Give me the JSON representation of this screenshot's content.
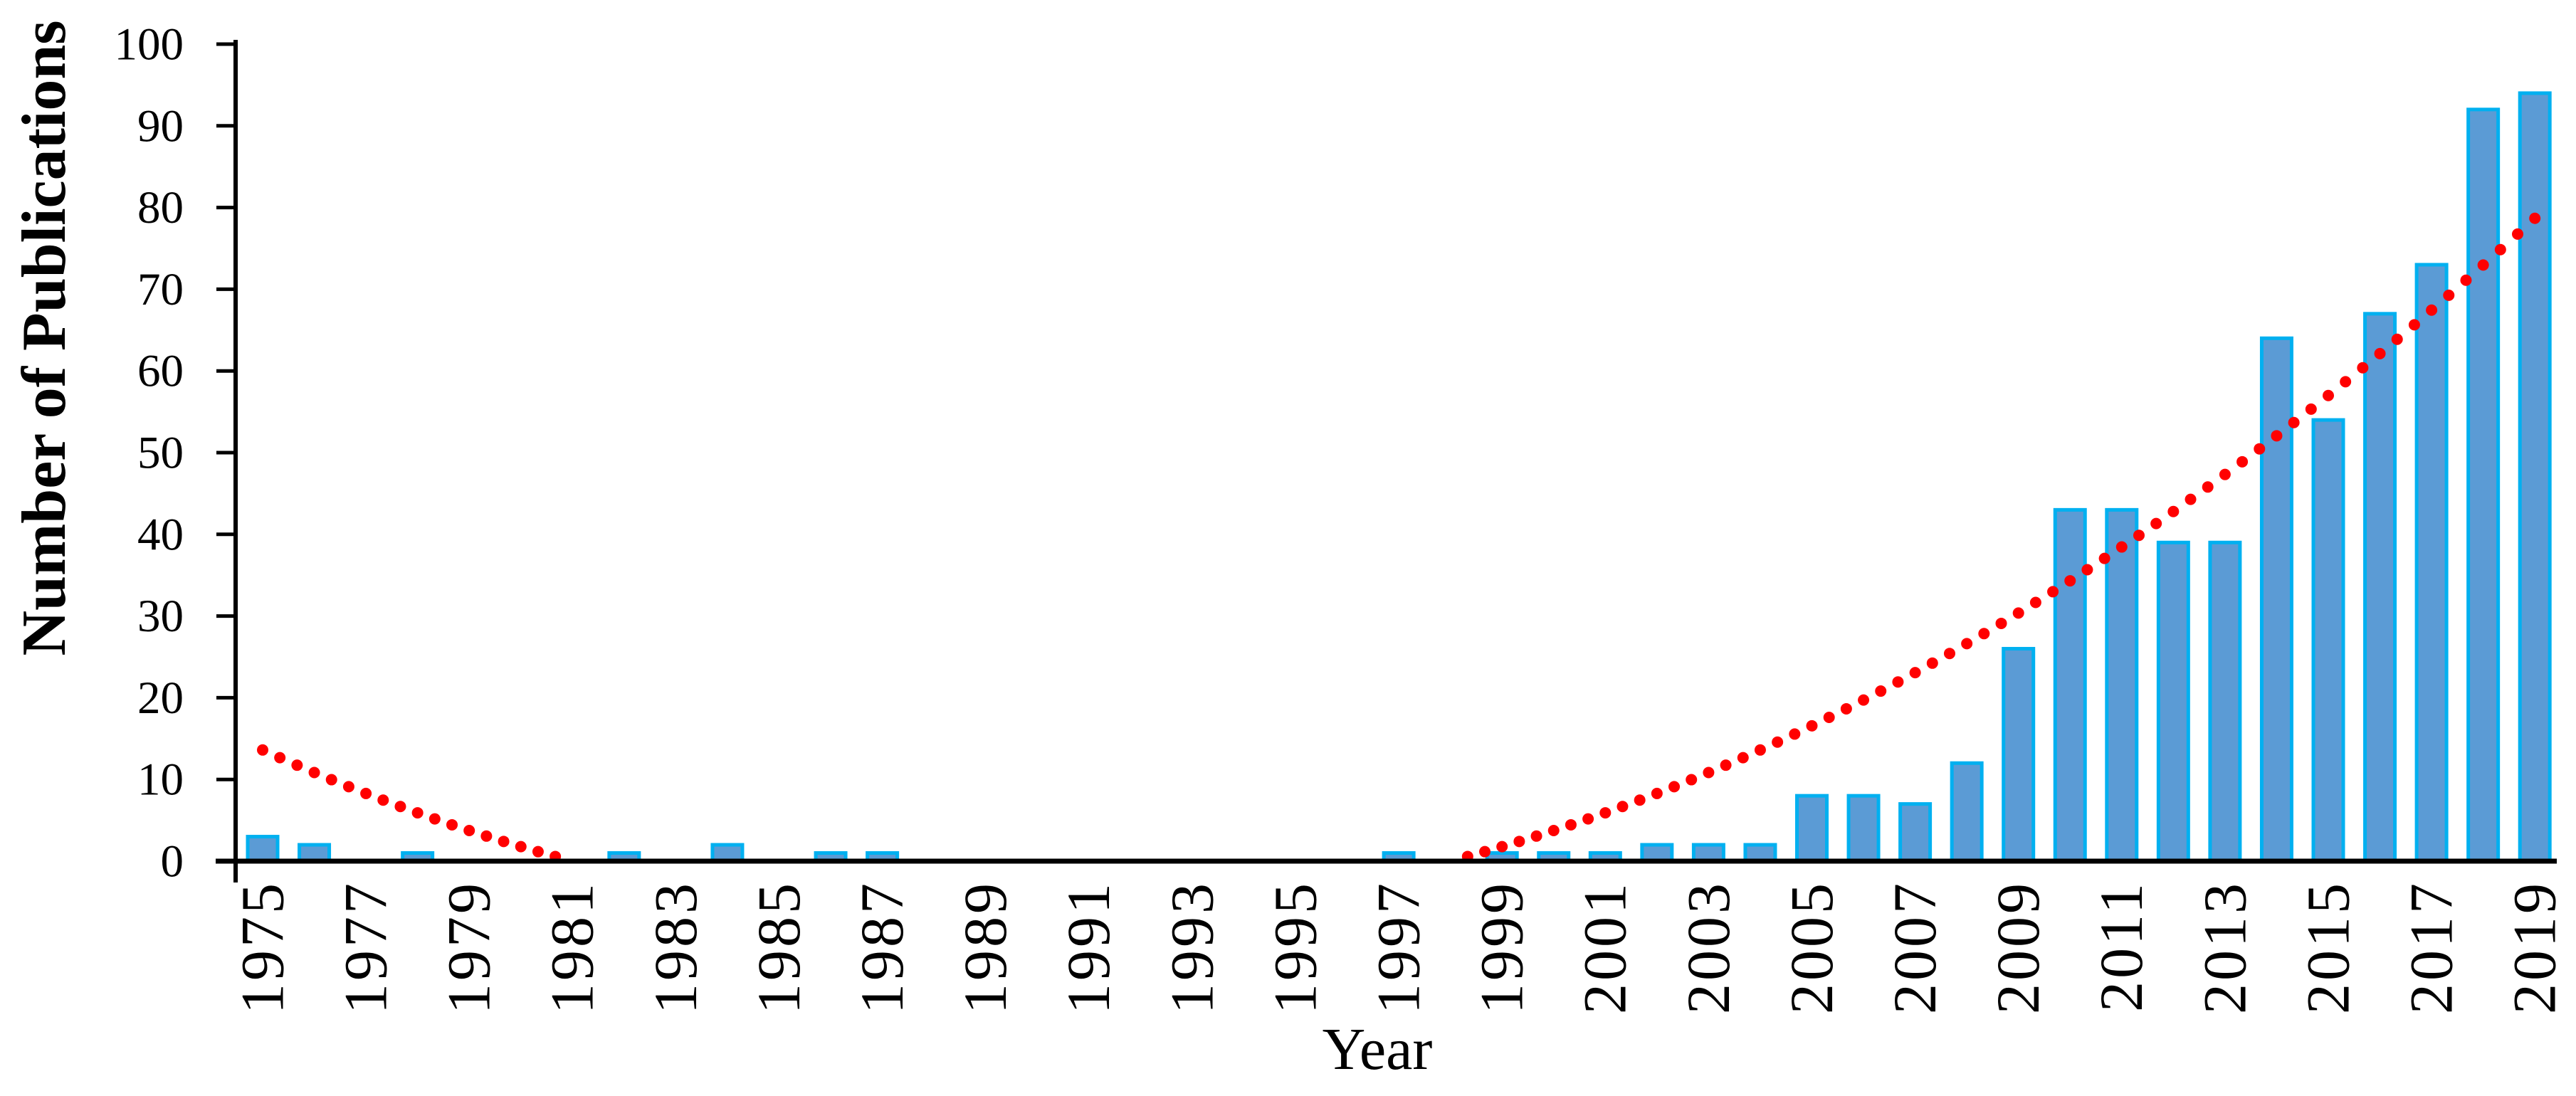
{
  "chart_data": {
    "type": "bar",
    "title": "",
    "xlabel": "Year",
    "ylabel": "Number of Publications",
    "categories": [
      1975,
      1976,
      1977,
      1978,
      1979,
      1980,
      1981,
      1982,
      1983,
      1984,
      1985,
      1986,
      1987,
      1988,
      1989,
      1990,
      1991,
      1992,
      1993,
      1994,
      1995,
      1996,
      1997,
      1998,
      1999,
      2000,
      2001,
      2002,
      2003,
      2004,
      2005,
      2006,
      2007,
      2008,
      2009,
      2010,
      2011,
      2012,
      2013,
      2014,
      2015,
      2016,
      2017,
      2018,
      2019
    ],
    "values": [
      3,
      2,
      0,
      1,
      0,
      0,
      0,
      1,
      0,
      2,
      0,
      1,
      1,
      0,
      0,
      0,
      0,
      0,
      0,
      0,
      0,
      0,
      1,
      0,
      1,
      1,
      1,
      2,
      2,
      2,
      8,
      8,
      7,
      12,
      26,
      43,
      43,
      39,
      39,
      64,
      54,
      67,
      73,
      92,
      94
    ],
    "x_tick_labels": [
      "1975",
      "1977",
      "1979",
      "1981",
      "1983",
      "1985",
      "1987",
      "1989",
      "1991",
      "1993",
      "1995",
      "1997",
      "1999",
      "2001",
      "2003",
      "2005",
      "2007",
      "2009",
      "2011",
      "2013",
      "2015",
      "2017",
      "2019"
    ],
    "x_label_every_years": 2,
    "yticks": [
      0,
      10,
      20,
      30,
      40,
      50,
      60,
      70,
      80,
      90,
      100
    ],
    "ylim": [
      0,
      100
    ],
    "grid": "off",
    "legend": "none",
    "colors": {
      "bar_fill": "#5B9BD5",
      "bar_border": "#00B0F0",
      "trendline": "#FF0000",
      "axis": "#000000"
    },
    "trendline": {
      "style": "dotted",
      "color": "#FF0000",
      "shape": "quadratic",
      "coefficient": 0.0986,
      "roots": [
        1981,
        1998
      ],
      "dot_step_years": 0.3333,
      "visible_range_years": [
        1975,
        2019
      ],
      "start_value": 13.6,
      "end_value": 78.7
    }
  }
}
